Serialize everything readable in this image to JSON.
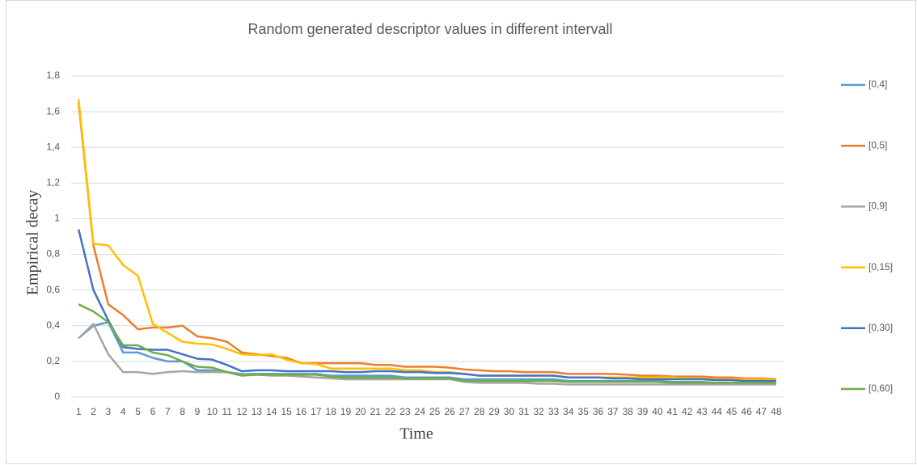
{
  "chart_data": {
    "type": "line",
    "title": "Random generated descriptor values in different intervall",
    "x_label": "Time",
    "y_label": "Empirical  decay",
    "categories": [
      1,
      2,
      3,
      4,
      5,
      6,
      7,
      8,
      9,
      10,
      11,
      12,
      13,
      14,
      15,
      16,
      17,
      18,
      19,
      20,
      21,
      22,
      23,
      24,
      25,
      26,
      27,
      28,
      29,
      30,
      31,
      32,
      33,
      34,
      35,
      36,
      37,
      38,
      39,
      40,
      41,
      42,
      43,
      44,
      45,
      46,
      47,
      48
    ],
    "ylim": [
      0,
      1.8
    ],
    "yticks": [
      0,
      {
        "value": 0.2,
        "label": "0,2"
      },
      {
        "value": 0.4,
        "label": "0,4"
      },
      {
        "value": 0.6,
        "label": "0,6"
      },
      {
        "value": 0.8,
        "label": "0,8"
      },
      1,
      {
        "value": 1.2,
        "label": "1,2"
      },
      {
        "value": 1.4,
        "label": "1,4"
      },
      {
        "value": 1.6,
        "label": "1,6"
      },
      {
        "value": 1.8,
        "label": "1,8"
      }
    ],
    "grid": true,
    "legend": "right",
    "series": [
      {
        "name": "[0,4]",
        "color": "#5b9bd5",
        "values": [
          0.33,
          0.4,
          0.42,
          0.25,
          0.25,
          0.22,
          0.2,
          0.2,
          0.15,
          0.15,
          0.14,
          0.13,
          0.13,
          0.13,
          0.13,
          0.13,
          0.13,
          0.12,
          0.12,
          0.12,
          0.12,
          0.12,
          0.11,
          0.11,
          0.11,
          0.11,
          0.1,
          0.1,
          0.1,
          0.1,
          0.1,
          0.1,
          0.1,
          0.09,
          0.09,
          0.09,
          0.09,
          0.09,
          0.09,
          0.09,
          0.085,
          0.085,
          0.085,
          0.08,
          0.08,
          0.08,
          0.08,
          0.08
        ]
      },
      {
        "name": "[0,5]",
        "color": "#ed7d31",
        "values": [
          1.65,
          0.85,
          0.52,
          0.46,
          0.38,
          0.39,
          0.39,
          0.4,
          0.34,
          0.33,
          0.31,
          0.25,
          0.24,
          0.23,
          0.22,
          0.19,
          0.19,
          0.19,
          0.19,
          0.19,
          0.18,
          0.18,
          0.17,
          0.17,
          0.17,
          0.165,
          0.155,
          0.15,
          0.145,
          0.145,
          0.14,
          0.14,
          0.14,
          0.13,
          0.13,
          0.13,
          0.13,
          0.125,
          0.12,
          0.12,
          0.115,
          0.115,
          0.115,
          0.11,
          0.11,
          0.105,
          0.105,
          0.1
        ]
      },
      {
        "name": "[0,9]",
        "color": "#a5a5a5",
        "values": [
          0.33,
          0.41,
          0.24,
          0.14,
          0.14,
          0.13,
          0.14,
          0.145,
          0.14,
          0.14,
          0.14,
          0.125,
          0.125,
          0.12,
          0.12,
          0.115,
          0.11,
          0.105,
          0.1,
          0.1,
          0.1,
          0.1,
          0.1,
          0.1,
          0.1,
          0.1,
          0.085,
          0.08,
          0.08,
          0.08,
          0.08,
          0.075,
          0.075,
          0.07,
          0.07,
          0.07,
          0.07,
          0.07,
          0.07,
          0.07,
          0.07,
          0.07,
          0.07,
          0.07,
          0.07,
          0.07,
          0.07,
          0.07
        ]
      },
      {
        "name": "[0,15]",
        "color": "#ffc000",
        "values": [
          1.67,
          0.86,
          0.85,
          0.74,
          0.68,
          0.41,
          0.36,
          0.31,
          0.3,
          0.295,
          0.27,
          0.24,
          0.235,
          0.24,
          0.21,
          0.19,
          0.185,
          0.16,
          0.16,
          0.16,
          0.16,
          0.16,
          0.15,
          0.15,
          0.14,
          0.14,
          0.13,
          0.12,
          0.12,
          0.12,
          0.12,
          0.12,
          0.12,
          0.11,
          0.11,
          0.11,
          0.11,
          0.11,
          0.11,
          0.11,
          0.11,
          0.105,
          0.105,
          0.1,
          0.1,
          0.1,
          0.1,
          0.095
        ]
      },
      {
        "name": "[0,30]",
        "color": "#4472c4",
        "values": [
          0.94,
          0.6,
          0.43,
          0.28,
          0.27,
          0.265,
          0.265,
          0.24,
          0.215,
          0.21,
          0.18,
          0.145,
          0.15,
          0.15,
          0.145,
          0.145,
          0.145,
          0.145,
          0.14,
          0.14,
          0.145,
          0.145,
          0.14,
          0.14,
          0.135,
          0.135,
          0.13,
          0.12,
          0.12,
          0.12,
          0.12,
          0.12,
          0.12,
          0.11,
          0.11,
          0.11,
          0.105,
          0.105,
          0.1,
          0.1,
          0.1,
          0.1,
          0.1,
          0.095,
          0.095,
          0.09,
          0.09,
          0.09
        ]
      },
      {
        "name": "[0,60]",
        "color": "#70ad47",
        "values": [
          0.52,
          0.48,
          0.42,
          0.29,
          0.29,
          0.25,
          0.235,
          0.2,
          0.17,
          0.165,
          0.14,
          0.12,
          0.125,
          0.125,
          0.125,
          0.125,
          0.125,
          0.115,
          0.11,
          0.11,
          0.11,
          0.11,
          0.105,
          0.105,
          0.105,
          0.105,
          0.09,
          0.09,
          0.09,
          0.09,
          0.09,
          0.09,
          0.09,
          0.085,
          0.085,
          0.085,
          0.085,
          0.085,
          0.085,
          0.085,
          0.08,
          0.08,
          0.08,
          0.08,
          0.08,
          0.08,
          0.08,
          0.08
        ]
      }
    ]
  }
}
